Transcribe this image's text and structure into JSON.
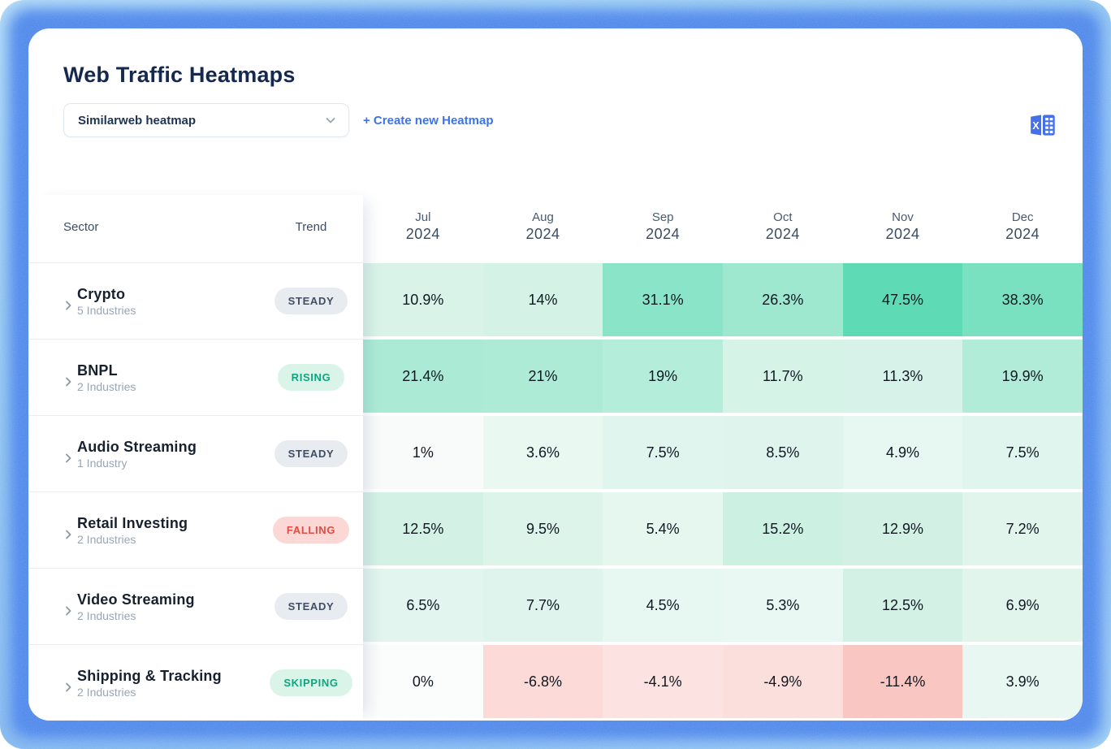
{
  "header": {
    "title": "Web Traffic Heatmaps"
  },
  "controls": {
    "heatmap_select_value": "Similarweb heatmap",
    "create_link_label": "+ Create new Heatmap",
    "export_icon": "excel-icon",
    "accent_blue": "#3d73e9",
    "excel_icon_color": "#4470eb"
  },
  "frame_colors": {
    "outer_glow": "#8fc9f1",
    "inner_ring": "#3d7ce9"
  },
  "trend_styles": {
    "steady": {
      "bg": "#e8ebf0",
      "fg": "#3f4e63"
    },
    "rising": {
      "bg": "#dbf4ea",
      "fg": "#10a57e"
    },
    "falling": {
      "bg": "#fbd8d5",
      "fg": "#e14b44"
    },
    "skipping": {
      "bg": "#dbf4ea",
      "fg": "#10a57e"
    }
  },
  "table": {
    "sector_header": "Sector",
    "trend_header": "Trend",
    "months": [
      {
        "label": "Jul",
        "year": "2024"
      },
      {
        "label": "Aug",
        "year": "2024"
      },
      {
        "label": "Sep",
        "year": "2024"
      },
      {
        "label": "Oct",
        "year": "2024"
      },
      {
        "label": "Nov",
        "year": "2024"
      },
      {
        "label": "Dec",
        "year": "2024"
      }
    ],
    "rows": [
      {
        "sector": "Crypto",
        "industries": "5 Industries",
        "trend": "STEADY",
        "trend_type": "steady",
        "cells": [
          {
            "value": "10.9%",
            "bg": "#d9f3e8"
          },
          {
            "value": "14%",
            "bg": "#d5f2e6"
          },
          {
            "value": "31.1%",
            "bg": "#8ae4c7"
          },
          {
            "value": "26.3%",
            "bg": "#9de8cf"
          },
          {
            "value": "47.5%",
            "bg": "#5edbb5"
          },
          {
            "value": "38.3%",
            "bg": "#79e1c0"
          }
        ]
      },
      {
        "sector": "BNPL",
        "industries": "2 Industries",
        "trend": "RISING",
        "trend_type": "rising",
        "cells": [
          {
            "value": "21.4%",
            "bg": "#abebd5"
          },
          {
            "value": "21%",
            "bg": "#adebd6"
          },
          {
            "value": "19%",
            "bg": "#b4edd9"
          },
          {
            "value": "11.7%",
            "bg": "#d6f3e8"
          },
          {
            "value": "11.3%",
            "bg": "#d7f3e9"
          },
          {
            "value": "19.9%",
            "bg": "#b0ecd7"
          }
        ]
      },
      {
        "sector": "Audio Streaming",
        "industries": "1 Industry",
        "trend": "STEADY",
        "trend_type": "steady",
        "cells": [
          {
            "value": "1%",
            "bg": "#f8fbfa"
          },
          {
            "value": "3.6%",
            "bg": "#eaf8f2"
          },
          {
            "value": "7.5%",
            "bg": "#e0f5ed"
          },
          {
            "value": "8.5%",
            "bg": "#def4ec"
          },
          {
            "value": "4.9%",
            "bg": "#e7f7f1"
          },
          {
            "value": "7.5%",
            "bg": "#e0f5ed"
          }
        ]
      },
      {
        "sector": "Retail Investing",
        "industries": "2 Industries",
        "trend": "FALLING",
        "trend_type": "falling",
        "cells": [
          {
            "value": "12.5%",
            "bg": "#d3f1e5"
          },
          {
            "value": "9.5%",
            "bg": "#dcf4ea"
          },
          {
            "value": "5.4%",
            "bg": "#e6f7f0"
          },
          {
            "value": "15.2%",
            "bg": "#ccf0e1"
          },
          {
            "value": "12.9%",
            "bg": "#d2f1e4"
          },
          {
            "value": "7.2%",
            "bg": "#e1f5ed"
          }
        ]
      },
      {
        "sector": "Video Streaming",
        "industries": "2 Industries",
        "trend": "STEADY",
        "trend_type": "steady",
        "cells": [
          {
            "value": "6.5%",
            "bg": "#e2f5ee"
          },
          {
            "value": "7.7%",
            "bg": "#dff4ec"
          },
          {
            "value": "4.5%",
            "bg": "#e7f7f1"
          },
          {
            "value": "5.3%",
            "bg": "#e9f8f2"
          },
          {
            "value": "12.5%",
            "bg": "#d3f1e5"
          },
          {
            "value": "6.9%",
            "bg": "#e1f5ed"
          }
        ]
      },
      {
        "sector": "Shipping & Tracking",
        "industries": "2 Industries",
        "trend": "SKIPPING",
        "trend_type": "skipping",
        "cells": [
          {
            "value": "0%",
            "bg": "#fbfcfc"
          },
          {
            "value": "-6.8%",
            "bg": "#fbdad7"
          },
          {
            "value": "-4.1%",
            "bg": "#fce2e0"
          },
          {
            "value": "-4.9%",
            "bg": "#fbdfdc"
          },
          {
            "value": "-11.4%",
            "bg": "#f9c6c1"
          },
          {
            "value": "3.9%",
            "bg": "#e8f7f1"
          }
        ]
      }
    ]
  }
}
